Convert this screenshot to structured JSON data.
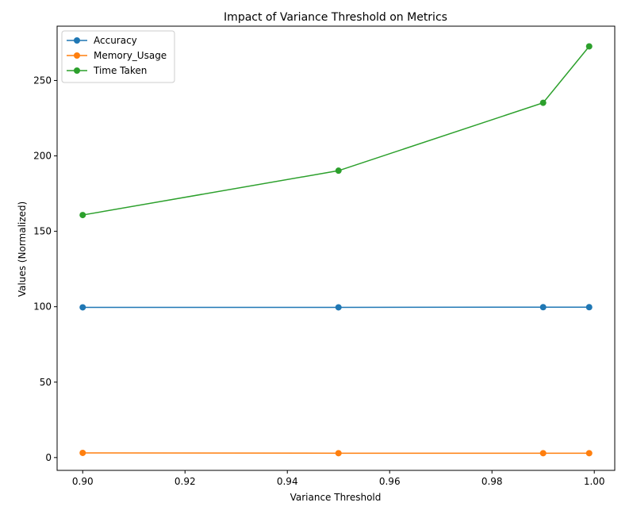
{
  "chart_data": {
    "type": "line",
    "title": "Impact of Variance Threshold on Metrics",
    "xlabel": "Variance Threshold",
    "ylabel": "Values (Normalized)",
    "x": [
      0.9,
      0.95,
      0.99,
      0.999
    ],
    "xlim": [
      0.895,
      1.004
    ],
    "ylim": [
      -8.5,
      286
    ],
    "xticks": [
      0.9,
      0.92,
      0.94,
      0.96,
      0.98,
      1.0
    ],
    "xtick_labels": [
      "0.90",
      "0.92",
      "0.94",
      "0.96",
      "0.98",
      "1.00"
    ],
    "yticks": [
      0,
      50,
      100,
      150,
      200,
      250
    ],
    "ytick_labels": [
      "0",
      "50",
      "100",
      "150",
      "200",
      "250"
    ],
    "grid": false,
    "legend_position": "upper-left",
    "series": [
      {
        "name": "Accuracy",
        "color": "#1f77b4",
        "values": [
          99.6,
          99.6,
          99.7,
          99.7
        ]
      },
      {
        "name": "Memory_Usage",
        "color": "#ff7f0e",
        "values": [
          3.1,
          2.9,
          2.9,
          2.9
        ]
      },
      {
        "name": "Time Taken",
        "color": "#2ca02c",
        "values": [
          160.8,
          190.2,
          235.2,
          272.6
        ]
      }
    ]
  }
}
